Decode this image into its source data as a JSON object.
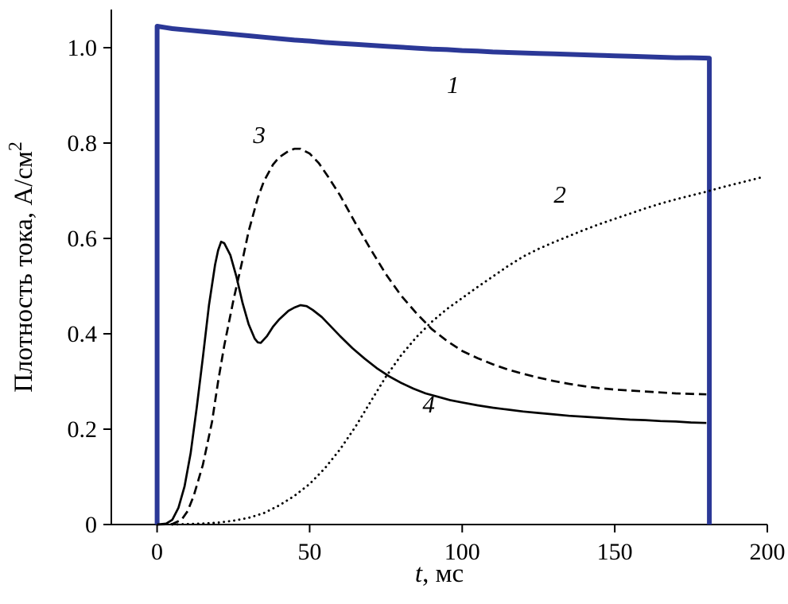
{
  "figure": {
    "name": "current-density-vs-time-plot"
  },
  "chart_data": {
    "type": "line",
    "title": "",
    "xlabel_italic": "t",
    "xlabel_rest": ", мс",
    "ylabel_main": "Плотность тока, А/см",
    "ylabel_sup": "2",
    "xlim": [
      -15,
      200
    ],
    "ylim": [
      0,
      1.08
    ],
    "xticks": [
      "0",
      "50",
      "100",
      "150",
      "200"
    ],
    "yticks": [
      "0",
      "0.2",
      "0.4",
      "0.6",
      "0.8",
      "1.0"
    ],
    "grid": false,
    "axis_color": "#000000",
    "series": [
      {
        "label": "1",
        "color": "#2b3897",
        "width": 6,
        "dash": "",
        "linecap": "butt",
        "label_at": [
          97,
          0.905
        ],
        "points": [
          [
            0,
            0
          ],
          [
            0,
            1.045
          ],
          [
            3,
            1.042
          ],
          [
            5,
            1.04
          ],
          [
            10,
            1.037
          ],
          [
            15,
            1.034
          ],
          [
            20,
            1.031
          ],
          [
            25,
            1.028
          ],
          [
            30,
            1.025
          ],
          [
            35,
            1.022
          ],
          [
            40,
            1.019
          ],
          [
            45,
            1.016
          ],
          [
            50,
            1.014
          ],
          [
            55,
            1.011
          ],
          [
            60,
            1.009
          ],
          [
            65,
            1.007
          ],
          [
            70,
            1.005
          ],
          [
            75,
            1.003
          ],
          [
            80,
            1.001
          ],
          [
            85,
            0.999
          ],
          [
            90,
            0.997
          ],
          [
            95,
            0.996
          ],
          [
            100,
            0.994
          ],
          [
            105,
            0.993
          ],
          [
            110,
            0.991
          ],
          [
            115,
            0.99
          ],
          [
            120,
            0.989
          ],
          [
            125,
            0.988
          ],
          [
            130,
            0.987
          ],
          [
            135,
            0.986
          ],
          [
            140,
            0.985
          ],
          [
            145,
            0.984
          ],
          [
            150,
            0.983
          ],
          [
            155,
            0.982
          ],
          [
            160,
            0.981
          ],
          [
            165,
            0.98
          ],
          [
            170,
            0.979
          ],
          [
            175,
            0.979
          ],
          [
            181,
            0.978
          ],
          [
            181,
            0
          ]
        ]
      },
      {
        "label": "2",
        "color": "#000000",
        "width": 2.9,
        "dash": "0.1 6.4",
        "linecap": "round",
        "label_at": [
          132,
          0.675
        ],
        "points": [
          [
            5,
            0
          ],
          [
            15,
            0.002
          ],
          [
            20,
            0.004
          ],
          [
            25,
            0.008
          ],
          [
            30,
            0.014
          ],
          [
            35,
            0.024
          ],
          [
            40,
            0.04
          ],
          [
            45,
            0.06
          ],
          [
            50,
            0.085
          ],
          [
            55,
            0.118
          ],
          [
            60,
            0.158
          ],
          [
            65,
            0.205
          ],
          [
            70,
            0.258
          ],
          [
            75,
            0.31
          ],
          [
            80,
            0.355
          ],
          [
            85,
            0.393
          ],
          [
            90,
            0.425
          ],
          [
            95,
            0.452
          ],
          [
            100,
            0.475
          ],
          [
            105,
            0.498
          ],
          [
            110,
            0.52
          ],
          [
            115,
            0.542
          ],
          [
            120,
            0.562
          ],
          [
            125,
            0.578
          ],
          [
            130,
            0.592
          ],
          [
            135,
            0.605
          ],
          [
            140,
            0.618
          ],
          [
            145,
            0.63
          ],
          [
            150,
            0.641
          ],
          [
            155,
            0.652
          ],
          [
            160,
            0.663
          ],
          [
            165,
            0.673
          ],
          [
            170,
            0.682
          ],
          [
            175,
            0.69
          ],
          [
            180,
            0.698
          ],
          [
            185,
            0.707
          ],
          [
            190,
            0.715
          ],
          [
            195,
            0.723
          ],
          [
            198,
            0.728
          ]
        ]
      },
      {
        "label": "3",
        "color": "#000000",
        "width": 2.7,
        "dash": "11 6",
        "linecap": "butt",
        "label_at": [
          33.5,
          0.8
        ],
        "points": [
          [
            0,
            0
          ],
          [
            5,
            0.001
          ],
          [
            8,
            0.01
          ],
          [
            10,
            0.028
          ],
          [
            12,
            0.06
          ],
          [
            15,
            0.125
          ],
          [
            18,
            0.215
          ],
          [
            20,
            0.3
          ],
          [
            22,
            0.375
          ],
          [
            25,
            0.47
          ],
          [
            28,
            0.555
          ],
          [
            30,
            0.615
          ],
          [
            33,
            0.685
          ],
          [
            35,
            0.72
          ],
          [
            38,
            0.755
          ],
          [
            40,
            0.77
          ],
          [
            43,
            0.783
          ],
          [
            45,
            0.788
          ],
          [
            47,
            0.788
          ],
          [
            50,
            0.778
          ],
          [
            53,
            0.758
          ],
          [
            56,
            0.73
          ],
          [
            60,
            0.69
          ],
          [
            65,
            0.632
          ],
          [
            70,
            0.577
          ],
          [
            75,
            0.525
          ],
          [
            80,
            0.48
          ],
          [
            85,
            0.443
          ],
          [
            90,
            0.41
          ],
          [
            95,
            0.385
          ],
          [
            100,
            0.364
          ],
          [
            105,
            0.349
          ],
          [
            110,
            0.336
          ],
          [
            115,
            0.325
          ],
          [
            120,
            0.316
          ],
          [
            125,
            0.308
          ],
          [
            130,
            0.301
          ],
          [
            135,
            0.295
          ],
          [
            140,
            0.29
          ],
          [
            145,
            0.286
          ],
          [
            150,
            0.283
          ],
          [
            155,
            0.281
          ],
          [
            160,
            0.279
          ],
          [
            165,
            0.277
          ],
          [
            170,
            0.275
          ],
          [
            175,
            0.274
          ],
          [
            180,
            0.273
          ]
        ]
      },
      {
        "label": "4",
        "color": "#000000",
        "width": 2.7,
        "dash": "",
        "linecap": "butt",
        "label_at": [
          89,
          0.235
        ],
        "points": [
          [
            0,
            0
          ],
          [
            3,
            0.002
          ],
          [
            5,
            0.01
          ],
          [
            7,
            0.035
          ],
          [
            9,
            0.08
          ],
          [
            11,
            0.15
          ],
          [
            13,
            0.245
          ],
          [
            15,
            0.35
          ],
          [
            17,
            0.46
          ],
          [
            19,
            0.545
          ],
          [
            20,
            0.575
          ],
          [
            21,
            0.593
          ],
          [
            22,
            0.59
          ],
          [
            24,
            0.565
          ],
          [
            26,
            0.52
          ],
          [
            28,
            0.465
          ],
          [
            30,
            0.42
          ],
          [
            32,
            0.39
          ],
          [
            33,
            0.382
          ],
          [
            34,
            0.381
          ],
          [
            36,
            0.395
          ],
          [
            38,
            0.415
          ],
          [
            40,
            0.43
          ],
          [
            43,
            0.448
          ],
          [
            45,
            0.455
          ],
          [
            47,
            0.46
          ],
          [
            49,
            0.458
          ],
          [
            51,
            0.45
          ],
          [
            54,
            0.435
          ],
          [
            57,
            0.415
          ],
          [
            60,
            0.395
          ],
          [
            64,
            0.37
          ],
          [
            68,
            0.348
          ],
          [
            72,
            0.328
          ],
          [
            76,
            0.311
          ],
          [
            80,
            0.297
          ],
          [
            84,
            0.285
          ],
          [
            88,
            0.275
          ],
          [
            92,
            0.268
          ],
          [
            96,
            0.261
          ],
          [
            100,
            0.256
          ],
          [
            105,
            0.25
          ],
          [
            110,
            0.245
          ],
          [
            115,
            0.241
          ],
          [
            120,
            0.237
          ],
          [
            125,
            0.234
          ],
          [
            130,
            0.231
          ],
          [
            135,
            0.228
          ],
          [
            140,
            0.226
          ],
          [
            145,
            0.224
          ],
          [
            150,
            0.222
          ],
          [
            155,
            0.22
          ],
          [
            160,
            0.219
          ],
          [
            165,
            0.217
          ],
          [
            170,
            0.216
          ],
          [
            175,
            0.214
          ],
          [
            180,
            0.213
          ]
        ]
      }
    ]
  }
}
